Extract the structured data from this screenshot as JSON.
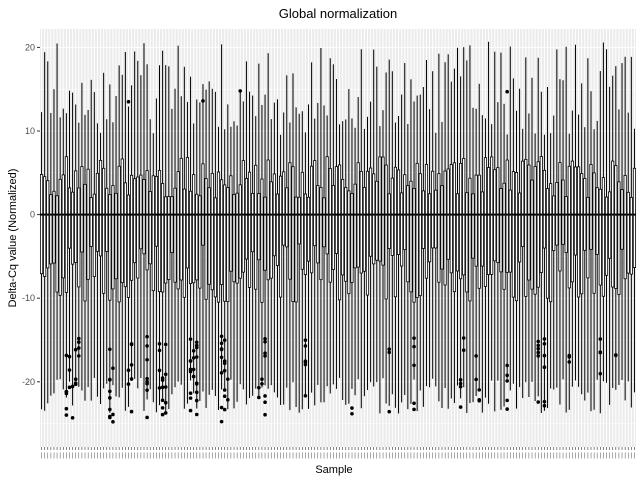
{
  "chart_data": {
    "type": "box",
    "title": "Global normalization",
    "xlabel": "Sample",
    "ylabel": "Delta-Cq value (Normalized)",
    "ylim": [
      -27.8,
      22.2
    ],
    "y_ticks": [
      -20,
      -10,
      0,
      10,
      20
    ],
    "y_tick_labels": [
      "-20",
      "-10",
      "0",
      "10",
      "20"
    ],
    "grid": true,
    "sample_count": 192,
    "x_tick_labels_legible": false,
    "median_all_samples": 0,
    "box_summary_typical": {
      "whisker_low": -21.5,
      "q1": -7.0,
      "median": 0,
      "q3": 4.5,
      "whisker_high": 13.0
    },
    "box_summary_range": {
      "whisker_low_min": -23.8,
      "whisker_high_max": 20.8,
      "q1_range": [
        -10.5,
        -3.5
      ],
      "q3_range": [
        2.0,
        7.0
      ]
    },
    "outliers_range": [
      -24.8,
      14.8
    ],
    "colors": {
      "panel_background": "#ebebeb",
      "grid_major": "#ffffff",
      "box_line": "#000000",
      "outlier_point": "#000000"
    }
  }
}
